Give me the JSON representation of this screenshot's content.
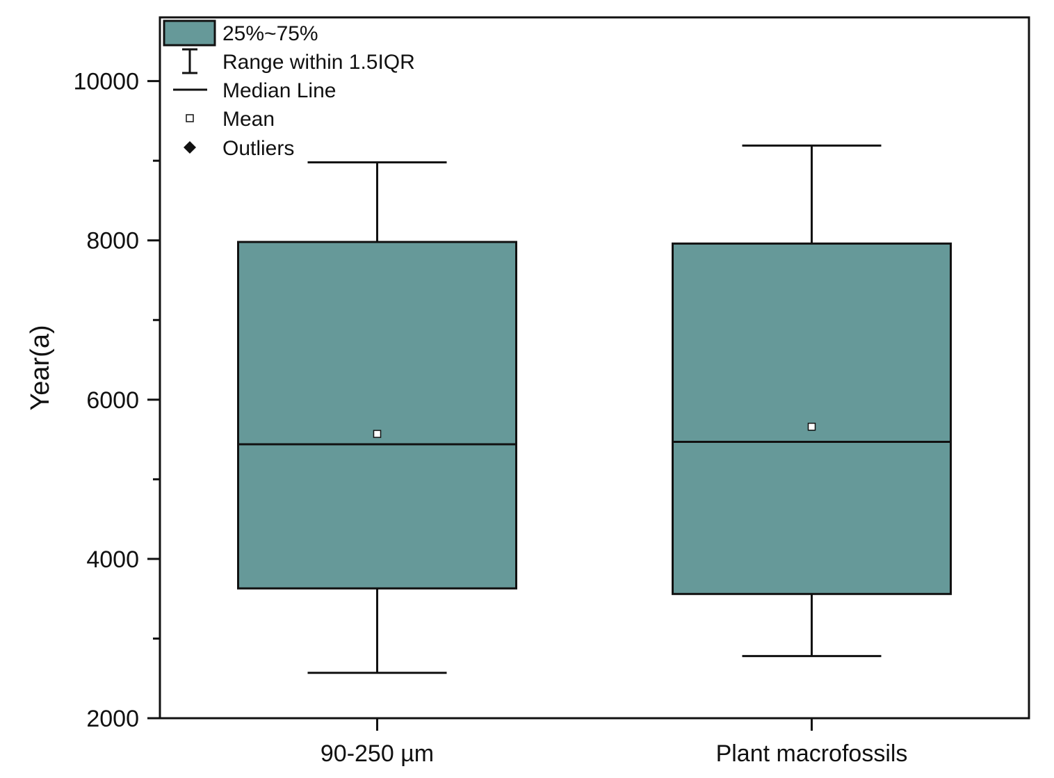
{
  "chart_data": {
    "type": "box",
    "ylabel": "Year(a)",
    "ylim": [
      2000,
      10800
    ],
    "yticks": [
      2000,
      4000,
      6000,
      8000,
      10000
    ],
    "box_color": "#669999",
    "categories": [
      "90-250 µm",
      "Plant macrofossils"
    ],
    "boxes": [
      {
        "category": "90-250 µm",
        "whisker_low": 2570,
        "q1": 3630,
        "median": 5440,
        "q3": 7980,
        "whisker_high": 8980,
        "mean": 5570
      },
      {
        "category": "Plant macrofossils",
        "whisker_low": 2780,
        "q1": 3560,
        "median": 5470,
        "q3": 7960,
        "whisker_high": 9190,
        "mean": 5660
      }
    ],
    "legend": {
      "position": "top-left",
      "items": [
        {
          "key": "box",
          "label": "25%~75%"
        },
        {
          "key": "whisker",
          "label": "Range within 1.5IQR"
        },
        {
          "key": "median",
          "label": "Median Line"
        },
        {
          "key": "mean",
          "label": "Mean"
        },
        {
          "key": "outlier",
          "label": "Outliers"
        }
      ]
    }
  }
}
